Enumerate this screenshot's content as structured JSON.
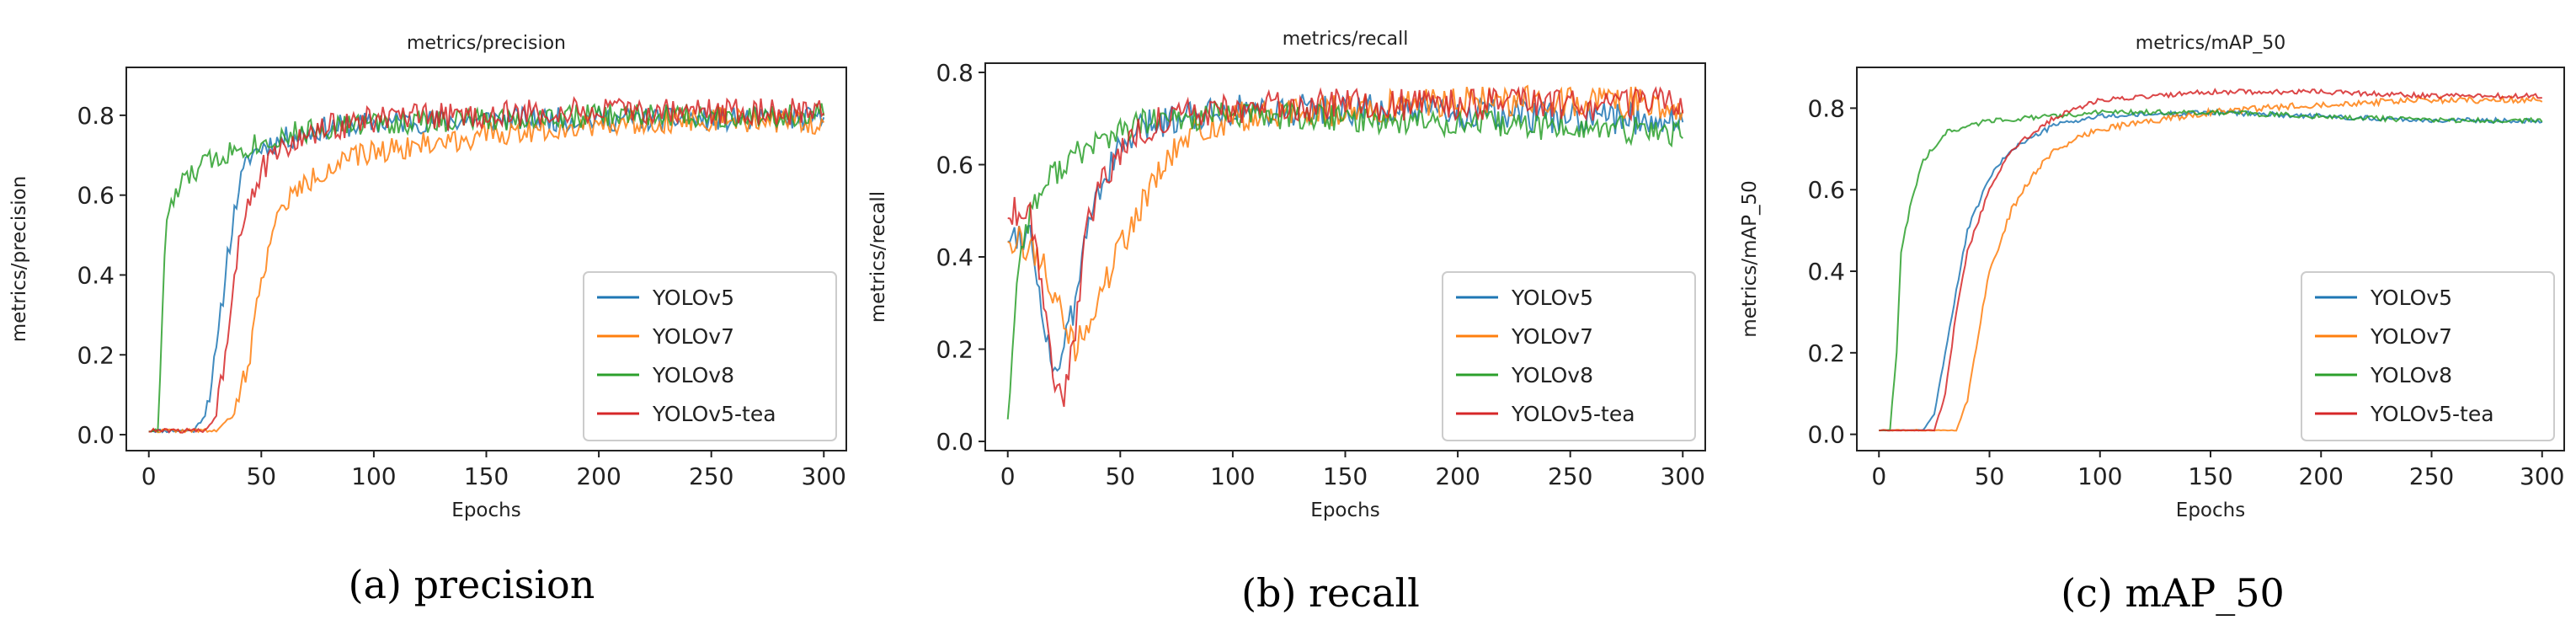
{
  "chart_data": [
    {
      "type": "line",
      "title": "metrics/precision",
      "xlabel": "Epochs",
      "ylabel": "metrics/precision",
      "xlim": [
        -10,
        310
      ],
      "ylim": [
        -0.04,
        0.92
      ],
      "xticks": [
        0,
        50,
        100,
        150,
        200,
        250,
        300
      ],
      "xtick_labels": [
        "0",
        "50",
        "100",
        "150",
        "200",
        "250",
        "300"
      ],
      "yticks": [
        0.0,
        0.2,
        0.4,
        0.6,
        0.8
      ],
      "ytick_labels": [
        "0.0",
        "0.2",
        "0.4",
        "0.6",
        "0.8"
      ],
      "legend": "lower-right",
      "caption": "(a) precision",
      "series": [
        {
          "name": "YOLOv5",
          "color": "#1f77b4",
          "points": [
            [
              0,
              0.01
            ],
            [
              20,
              0.01
            ],
            [
              25,
              0.05
            ],
            [
              30,
              0.2
            ],
            [
              35,
              0.45
            ],
            [
              40,
              0.62
            ],
            [
              45,
              0.7
            ],
            [
              50,
              0.72
            ],
            [
              60,
              0.74
            ],
            [
              80,
              0.77
            ],
            [
              100,
              0.78
            ],
            [
              150,
              0.79
            ],
            [
              200,
              0.79
            ],
            [
              250,
              0.79
            ],
            [
              300,
              0.79
            ]
          ],
          "noise": 0.03,
          "seed": 11
        },
        {
          "name": "YOLOv7",
          "color": "#ff7f0e",
          "points": [
            [
              0,
              0.01
            ],
            [
              30,
              0.01
            ],
            [
              38,
              0.05
            ],
            [
              45,
              0.2
            ],
            [
              50,
              0.4
            ],
            [
              55,
              0.5
            ],
            [
              60,
              0.58
            ],
            [
              70,
              0.63
            ],
            [
              80,
              0.67
            ],
            [
              100,
              0.71
            ],
            [
              150,
              0.75
            ],
            [
              200,
              0.78
            ],
            [
              250,
              0.79
            ],
            [
              300,
              0.78
            ]
          ],
          "noise": 0.03,
          "seed": 22
        },
        {
          "name": "YOLOv8",
          "color": "#2ca02c",
          "points": [
            [
              0,
              0.01
            ],
            [
              4,
              0.01
            ],
            [
              6,
              0.3
            ],
            [
              8,
              0.55
            ],
            [
              15,
              0.63
            ],
            [
              25,
              0.68
            ],
            [
              40,
              0.72
            ],
            [
              50,
              0.73
            ],
            [
              60,
              0.75
            ],
            [
              80,
              0.77
            ],
            [
              100,
              0.78
            ],
            [
              150,
              0.79
            ],
            [
              200,
              0.8
            ],
            [
              250,
              0.8
            ],
            [
              300,
              0.8
            ]
          ],
          "noise": 0.03,
          "seed": 33
        },
        {
          "name": "YOLOv5-tea",
          "color": "#d62728",
          "points": [
            [
              0,
              0.01
            ],
            [
              25,
              0.01
            ],
            [
              30,
              0.05
            ],
            [
              35,
              0.25
            ],
            [
              40,
              0.5
            ],
            [
              45,
              0.6
            ],
            [
              50,
              0.66
            ],
            [
              60,
              0.72
            ],
            [
              80,
              0.77
            ],
            [
              100,
              0.79
            ],
            [
              150,
              0.8
            ],
            [
              200,
              0.81
            ],
            [
              250,
              0.81
            ],
            [
              300,
              0.81
            ]
          ],
          "noise": 0.035,
          "seed": 44
        }
      ]
    },
    {
      "type": "line",
      "title": "metrics/recall",
      "xlabel": "Epochs",
      "ylabel": "metrics/recall",
      "xlim": [
        -10,
        310
      ],
      "ylim": [
        -0.02,
        0.82
      ],
      "xticks": [
        0,
        50,
        100,
        150,
        200,
        250,
        300
      ],
      "xtick_labels": [
        "0",
        "50",
        "100",
        "150",
        "200",
        "250",
        "300"
      ],
      "yticks": [
        0.0,
        0.2,
        0.4,
        0.6,
        0.8
      ],
      "ytick_labels": [
        "0.0",
        "0.2",
        "0.4",
        "0.6",
        "0.8"
      ],
      "legend": "lower-right",
      "caption": "(b) recall",
      "series": [
        {
          "name": "YOLOv5",
          "color": "#1f77b4",
          "points": [
            [
              0,
              0.45
            ],
            [
              10,
              0.45
            ],
            [
              15,
              0.3
            ],
            [
              20,
              0.15
            ],
            [
              25,
              0.2
            ],
            [
              30,
              0.3
            ],
            [
              35,
              0.45
            ],
            [
              40,
              0.55
            ],
            [
              50,
              0.63
            ],
            [
              60,
              0.68
            ],
            [
              80,
              0.71
            ],
            [
              100,
              0.72
            ],
            [
              150,
              0.72
            ],
            [
              200,
              0.71
            ],
            [
              250,
              0.7
            ],
            [
              300,
              0.7
            ]
          ],
          "noise": 0.035,
          "seed": 55
        },
        {
          "name": "YOLOv7",
          "color": "#ff7f0e",
          "points": [
            [
              0,
              0.45
            ],
            [
              15,
              0.4
            ],
            [
              25,
              0.25
            ],
            [
              30,
              0.2
            ],
            [
              40,
              0.3
            ],
            [
              50,
              0.42
            ],
            [
              60,
              0.52
            ],
            [
              70,
              0.6
            ],
            [
              80,
              0.66
            ],
            [
              100,
              0.7
            ],
            [
              150,
              0.72
            ],
            [
              200,
              0.74
            ],
            [
              250,
              0.74
            ],
            [
              300,
              0.73
            ]
          ],
          "noise": 0.035,
          "seed": 66
        },
        {
          "name": "YOLOv8",
          "color": "#2ca02c",
          "points": [
            [
              0,
              0.05
            ],
            [
              5,
              0.4
            ],
            [
              10,
              0.5
            ],
            [
              20,
              0.58
            ],
            [
              30,
              0.62
            ],
            [
              40,
              0.65
            ],
            [
              50,
              0.67
            ],
            [
              60,
              0.69
            ],
            [
              80,
              0.7
            ],
            [
              100,
              0.71
            ],
            [
              150,
              0.7
            ],
            [
              200,
              0.69
            ],
            [
              250,
              0.68
            ],
            [
              300,
              0.67
            ]
          ],
          "noise": 0.03,
          "seed": 77
        },
        {
          "name": "YOLOv5-tea",
          "color": "#d62728",
          "points": [
            [
              0,
              0.5
            ],
            [
              10,
              0.5
            ],
            [
              15,
              0.35
            ],
            [
              20,
              0.15
            ],
            [
              25,
              0.1
            ],
            [
              30,
              0.25
            ],
            [
              35,
              0.45
            ],
            [
              40,
              0.55
            ],
            [
              50,
              0.63
            ],
            [
              60,
              0.68
            ],
            [
              80,
              0.71
            ],
            [
              100,
              0.72
            ],
            [
              150,
              0.73
            ],
            [
              200,
              0.73
            ],
            [
              250,
              0.73
            ],
            [
              300,
              0.73
            ]
          ],
          "noise": 0.035,
          "seed": 88
        }
      ]
    },
    {
      "type": "line",
      "title": "metrics/mAP_50",
      "xlabel": "Epochs",
      "ylabel": "metrics/mAP_50",
      "xlim": [
        -10,
        310
      ],
      "ylim": [
        -0.04,
        0.9
      ],
      "xticks": [
        0,
        50,
        100,
        150,
        200,
        250,
        300
      ],
      "xtick_labels": [
        "0",
        "50",
        "100",
        "150",
        "200",
        "250",
        "300"
      ],
      "yticks": [
        0.0,
        0.2,
        0.4,
        0.6,
        0.8
      ],
      "ytick_labels": [
        "0.0",
        "0.2",
        "0.4",
        "0.6",
        "0.8"
      ],
      "legend": "lower-right",
      "caption": "(c) mAP_50",
      "series": [
        {
          "name": "YOLOv5",
          "color": "#1f77b4",
          "points": [
            [
              0,
              0.01
            ],
            [
              20,
              0.01
            ],
            [
              25,
              0.05
            ],
            [
              30,
              0.2
            ],
            [
              35,
              0.35
            ],
            [
              40,
              0.5
            ],
            [
              50,
              0.63
            ],
            [
              60,
              0.7
            ],
            [
              80,
              0.76
            ],
            [
              100,
              0.78
            ],
            [
              150,
              0.79
            ],
            [
              200,
              0.78
            ],
            [
              250,
              0.77
            ],
            [
              300,
              0.77
            ]
          ],
          "noise": 0.006,
          "seed": 99
        },
        {
          "name": "YOLOv7",
          "color": "#ff7f0e",
          "points": [
            [
              0,
              0.01
            ],
            [
              35,
              0.01
            ],
            [
              40,
              0.08
            ],
            [
              45,
              0.25
            ],
            [
              50,
              0.4
            ],
            [
              60,
              0.55
            ],
            [
              70,
              0.64
            ],
            [
              80,
              0.7
            ],
            [
              100,
              0.75
            ],
            [
              150,
              0.79
            ],
            [
              200,
              0.81
            ],
            [
              250,
              0.82
            ],
            [
              300,
              0.82
            ]
          ],
          "noise": 0.008,
          "seed": 111
        },
        {
          "name": "YOLOv8",
          "color": "#2ca02c",
          "points": [
            [
              0,
              0.01
            ],
            [
              5,
              0.01
            ],
            [
              8,
              0.2
            ],
            [
              10,
              0.45
            ],
            [
              15,
              0.58
            ],
            [
              20,
              0.67
            ],
            [
              30,
              0.74
            ],
            [
              50,
              0.77
            ],
            [
              80,
              0.78
            ],
            [
              100,
              0.79
            ],
            [
              150,
              0.79
            ],
            [
              200,
              0.78
            ],
            [
              250,
              0.77
            ],
            [
              300,
              0.77
            ]
          ],
          "noise": 0.006,
          "seed": 122
        },
        {
          "name": "YOLOv5-tea",
          "color": "#d62728",
          "points": [
            [
              0,
              0.01
            ],
            [
              25,
              0.01
            ],
            [
              30,
              0.1
            ],
            [
              35,
              0.3
            ],
            [
              40,
              0.45
            ],
            [
              50,
              0.6
            ],
            [
              60,
              0.7
            ],
            [
              80,
              0.78
            ],
            [
              100,
              0.82
            ],
            [
              150,
              0.84
            ],
            [
              200,
              0.84
            ],
            [
              250,
              0.83
            ],
            [
              300,
              0.83
            ]
          ],
          "noise": 0.006,
          "seed": 133
        }
      ]
    }
  ]
}
